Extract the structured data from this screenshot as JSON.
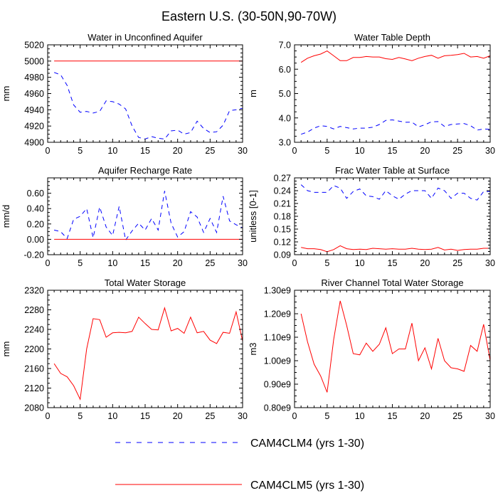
{
  "title": "Eastern U.S. (30-50N,90-70W)",
  "legend": {
    "placement": "bottom-center",
    "entries": [
      {
        "label": "CAM4CLM4 (yrs 1-30)",
        "color": "#0000ff",
        "dash": "dashed"
      },
      {
        "label": "CAM4CLM5 (yrs 1-30)",
        "color": "#ff0000",
        "dash": "solid"
      }
    ]
  },
  "colors": {
    "CAM4CLM4": "#0000ff",
    "CAM4CLM5": "#ff0000"
  },
  "chart_data": [
    {
      "type": "line",
      "title": "Water in Unconfined Aquifer",
      "ylabel": "mm",
      "xlim": [
        0,
        30
      ],
      "ylim": [
        4900,
        5020
      ],
      "xticks": [
        0,
        5,
        10,
        15,
        20,
        25,
        30
      ],
      "yticks": [
        4900,
        4920,
        4940,
        4960,
        4980,
        5000,
        5020
      ],
      "yticklabels": [
        "4900",
        "4920",
        "4940",
        "4960",
        "4980",
        "5000",
        "5020"
      ],
      "x": [
        1,
        2,
        3,
        4,
        5,
        6,
        7,
        8,
        9,
        10,
        11,
        12,
        13,
        14,
        15,
        16,
        17,
        18,
        19,
        20,
        21,
        22,
        23,
        24,
        25,
        26,
        27,
        28,
        29,
        30
      ],
      "series": [
        {
          "name": "CAM4CLM4",
          "color": "#0000ff",
          "dash": "dashed",
          "values": [
            4986,
            4983,
            4970,
            4946,
            4937,
            4938,
            4936,
            4938,
            4951,
            4950,
            4947,
            4941,
            4920,
            4906,
            4904,
            4907,
            4905,
            4904,
            4914,
            4915,
            4910,
            4912,
            4926,
            4917,
            4912,
            4913,
            4921,
            4939,
            4940,
            4942
          ]
        },
        {
          "name": "CAM4CLM5",
          "color": "#ff0000",
          "dash": "solid",
          "values": [
            5000,
            5000,
            5000,
            5000,
            5000,
            5000,
            5000,
            5000,
            5000,
            5000,
            5000,
            5000,
            5000,
            5000,
            5000,
            5000,
            5000,
            5000,
            5000,
            5000,
            5000,
            5000,
            5000,
            5000,
            5000,
            5000,
            5000,
            5000,
            5000,
            5000
          ]
        }
      ]
    },
    {
      "type": "line",
      "title": "Water Table Depth",
      "ylabel": "m",
      "xlim": [
        0,
        30
      ],
      "ylim": [
        3.0,
        7.0
      ],
      "xticks": [
        0,
        5,
        10,
        15,
        20,
        25,
        30
      ],
      "yticks": [
        3.0,
        4.0,
        5.0,
        6.0,
        7.0
      ],
      "yticklabels": [
        "3.0",
        "4.0",
        "5.0",
        "6.0",
        "7.0"
      ],
      "x": [
        1,
        2,
        3,
        4,
        5,
        6,
        7,
        8,
        9,
        10,
        11,
        12,
        13,
        14,
        15,
        16,
        17,
        18,
        19,
        20,
        21,
        22,
        23,
        24,
        25,
        26,
        27,
        28,
        29,
        30
      ],
      "series": [
        {
          "name": "CAM4CLM4",
          "color": "#0000ff",
          "dash": "dashed",
          "values": [
            3.33,
            3.42,
            3.58,
            3.68,
            3.65,
            3.55,
            3.65,
            3.6,
            3.55,
            3.58,
            3.58,
            3.62,
            3.73,
            3.9,
            3.92,
            3.87,
            3.82,
            3.83,
            3.63,
            3.72,
            3.84,
            3.85,
            3.65,
            3.73,
            3.75,
            3.77,
            3.68,
            3.5,
            3.55,
            3.53
          ]
        },
        {
          "name": "CAM4CLM5",
          "color": "#ff0000",
          "dash": "solid",
          "values": [
            6.28,
            6.45,
            6.55,
            6.62,
            6.75,
            6.55,
            6.35,
            6.35,
            6.48,
            6.48,
            6.52,
            6.5,
            6.5,
            6.43,
            6.4,
            6.48,
            6.42,
            6.35,
            6.45,
            6.52,
            6.57,
            6.45,
            6.55,
            6.57,
            6.6,
            6.65,
            6.5,
            6.52,
            6.45,
            6.55
          ]
        }
      ]
    },
    {
      "type": "line",
      "title": "Aquifer Recharge Rate",
      "ylabel": "mm/d",
      "xlim": [
        0,
        30
      ],
      "ylim": [
        -0.2,
        0.8
      ],
      "xticks": [
        0,
        5,
        10,
        15,
        20,
        25,
        30
      ],
      "yticks": [
        -0.2,
        0.0,
        0.2,
        0.4,
        0.6
      ],
      "yticklabels": [
        "-0.20",
        "0.00",
        "0.20",
        "0.40",
        "0.60"
      ],
      "x": [
        1,
        2,
        3,
        4,
        5,
        6,
        7,
        8,
        9,
        10,
        11,
        12,
        13,
        14,
        15,
        16,
        17,
        18,
        19,
        20,
        21,
        22,
        23,
        24,
        25,
        26,
        27,
        28,
        29,
        30
      ],
      "series": [
        {
          "name": "CAM4CLM4",
          "color": "#0000ff",
          "dash": "dashed",
          "values": [
            0.12,
            0.1,
            0.01,
            0.26,
            0.3,
            0.4,
            0.02,
            0.42,
            0.16,
            0.05,
            0.43,
            -0.01,
            0.11,
            0.21,
            0.12,
            0.27,
            0.12,
            0.63,
            0.21,
            0.03,
            0.1,
            0.36,
            0.29,
            0.09,
            0.27,
            0.09,
            0.56,
            0.24,
            0.19,
            0.15
          ]
        },
        {
          "name": "CAM4CLM5",
          "color": "#ff0000",
          "dash": "solid",
          "values": [
            0,
            0,
            0,
            0,
            0,
            0,
            0,
            0,
            0,
            0,
            0,
            0,
            0,
            0,
            0,
            0,
            0,
            0,
            0,
            0,
            0,
            0,
            0,
            0,
            0,
            0,
            0,
            0,
            0,
            0
          ]
        }
      ]
    },
    {
      "type": "line",
      "title": "Frac Water Table at Surface",
      "ylabel": "unitless [0-1]",
      "xlim": [
        0,
        30
      ],
      "ylim": [
        0.09,
        0.27
      ],
      "xticks": [
        0,
        5,
        10,
        15,
        20,
        25,
        30
      ],
      "yticks": [
        0.09,
        0.12,
        0.15,
        0.18,
        0.21,
        0.24,
        0.27
      ],
      "yticklabels": [
        "0.09",
        "0.12",
        "0.15",
        "0.18",
        "0.21",
        "0.24",
        "0.27"
      ],
      "x": [
        1,
        2,
        3,
        4,
        5,
        6,
        7,
        8,
        9,
        10,
        11,
        12,
        13,
        14,
        15,
        16,
        17,
        18,
        19,
        20,
        21,
        22,
        23,
        24,
        25,
        26,
        27,
        28,
        29,
        30
      ],
      "series": [
        {
          "name": "CAM4CLM4",
          "color": "#0000ff",
          "dash": "dashed",
          "values": [
            0.254,
            0.24,
            0.236,
            0.236,
            0.236,
            0.252,
            0.246,
            0.222,
            0.238,
            0.244,
            0.228,
            0.226,
            0.22,
            0.24,
            0.228,
            0.22,
            0.232,
            0.24,
            0.24,
            0.24,
            0.222,
            0.246,
            0.24,
            0.222,
            0.234,
            0.234,
            0.222,
            0.218,
            0.238,
            0.238
          ]
        },
        {
          "name": "CAM4CLM5",
          "color": "#ff0000",
          "dash": "solid",
          "values": [
            0.107,
            0.104,
            0.104,
            0.102,
            0.097,
            0.102,
            0.111,
            0.104,
            0.102,
            0.103,
            0.102,
            0.105,
            0.104,
            0.103,
            0.104,
            0.103,
            0.103,
            0.105,
            0.103,
            0.102,
            0.103,
            0.107,
            0.101,
            0.103,
            0.1,
            0.102,
            0.103,
            0.103,
            0.105,
            0.105
          ]
        }
      ]
    },
    {
      "type": "line",
      "title": "Total Water Storage",
      "ylabel": "mm",
      "xlim": [
        0,
        30
      ],
      "ylim": [
        2080,
        2320
      ],
      "xticks": [
        0,
        5,
        10,
        15,
        20,
        25,
        30
      ],
      "yticks": [
        2080,
        2120,
        2160,
        2200,
        2240,
        2280,
        2320
      ],
      "yticklabels": [
        "2080",
        "2120",
        "2160",
        "2200",
        "2240",
        "2280",
        "2320"
      ],
      "x": [
        1,
        2,
        3,
        4,
        5,
        6,
        7,
        8,
        9,
        10,
        11,
        12,
        13,
        14,
        15,
        16,
        17,
        18,
        19,
        20,
        21,
        22,
        23,
        24,
        25,
        26,
        27,
        28,
        29,
        30
      ],
      "series": [
        {
          "name": "CAM4CLM5",
          "color": "#ff0000",
          "dash": "solid",
          "values": [
            2170,
            2150,
            2143,
            2125,
            2097,
            2200,
            2262,
            2260,
            2224,
            2233,
            2234,
            2233,
            2236,
            2265,
            2252,
            2240,
            2239,
            2284,
            2237,
            2242,
            2232,
            2265,
            2233,
            2236,
            2218,
            2211,
            2234,
            2232,
            2276,
            2216
          ]
        }
      ]
    },
    {
      "type": "line",
      "title": "River Channel Total Water Storage",
      "ylabel": "m3",
      "xlim": [
        0,
        30
      ],
      "ylim": [
        800000000.0,
        1300000000.0
      ],
      "xticks": [
        0,
        5,
        10,
        15,
        20,
        25,
        30
      ],
      "yticks": [
        800000000.0,
        900000000.0,
        1000000000.0,
        1100000000.0,
        1200000000.0,
        1300000000.0
      ],
      "yticklabels": [
        "0.80e9",
        "0.90e9",
        "1.00e9",
        "1.10e9",
        "1.20e9",
        "1.30e9"
      ],
      "x": [
        1,
        2,
        3,
        4,
        5,
        6,
        7,
        8,
        9,
        10,
        11,
        12,
        13,
        14,
        15,
        16,
        17,
        18,
        19,
        20,
        21,
        22,
        23,
        24,
        25,
        26,
        27,
        28,
        29,
        30
      ],
      "series": [
        {
          "name": "CAM4CLM5",
          "color": "#ff0000",
          "dash": "solid",
          "values": [
            1200000000.0,
            1080000000.0,
            985000000.0,
            935000000.0,
            865000000.0,
            1090000000.0,
            1255000000.0,
            1150000000.0,
            1030000000.0,
            1025000000.0,
            1075000000.0,
            1040000000.0,
            1070000000.0,
            1140000000.0,
            1030000000.0,
            1050000000.0,
            1050000000.0,
            1160000000.0,
            1000000000.0,
            1055000000.0,
            965000000.0,
            1095000000.0,
            1000000000.0,
            970000000.0,
            965000000.0,
            955000000.0,
            1065000000.0,
            1040000000.0,
            1155000000.0,
            1000000000.0
          ]
        }
      ]
    }
  ]
}
